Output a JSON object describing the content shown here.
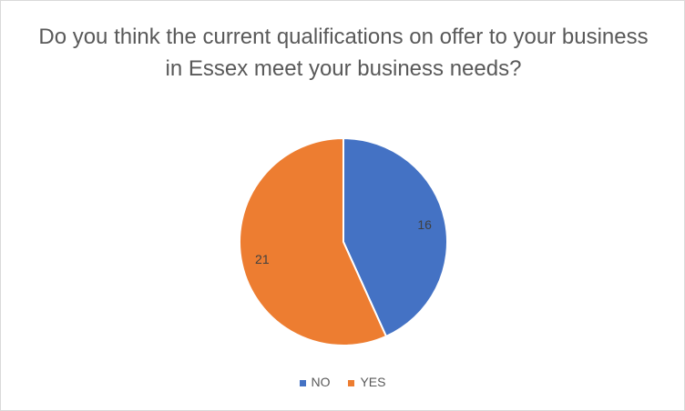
{
  "chart_data": {
    "type": "pie",
    "title": "Do you think the current qualifications on offer to your business in Essex meet your business needs?",
    "categories": [
      "NO",
      "YES"
    ],
    "values": [
      16,
      21
    ],
    "colors": [
      "#4472c4",
      "#ed7d31"
    ],
    "legend": "bottom",
    "data_labels": [
      "16",
      "21"
    ]
  }
}
